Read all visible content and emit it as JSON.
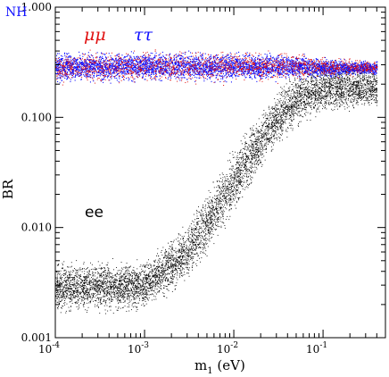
{
  "chart_data": {
    "type": "scatter",
    "corner_label": "NH",
    "corner_label_color": "#1010ff",
    "xlabel": "m",
    "xlabel_subscript": "1",
    "xlabel_unit": " (eV)",
    "ylabel": "BR",
    "x_scale": "log",
    "y_scale": "log",
    "xlim": [
      0.0001,
      0.5
    ],
    "ylim": [
      0.001,
      1.0
    ],
    "x_ticks": [
      {
        "value": 0.0001,
        "base": "10",
        "exp": "-4"
      },
      {
        "value": 0.001,
        "base": "10",
        "exp": "-3"
      },
      {
        "value": 0.01,
        "base": "10",
        "exp": "-2"
      },
      {
        "value": 0.1,
        "base": "10",
        "exp": "-1"
      }
    ],
    "y_ticks": [
      {
        "value": 0.001,
        "label": "0.001"
      },
      {
        "value": 0.01,
        "label": "0.010"
      },
      {
        "value": 0.1,
        "label": "0.100"
      },
      {
        "value": 1.0,
        "label": "1.000"
      }
    ],
    "series": [
      {
        "name": "μμ",
        "color": "#e01010",
        "band": [
          {
            "x": 0.0001,
            "low": 0.19,
            "high": 0.44
          },
          {
            "x": 0.01,
            "low": 0.19,
            "high": 0.44
          },
          {
            "x": 0.04,
            "low": 0.2,
            "high": 0.42
          },
          {
            "x": 0.1,
            "low": 0.22,
            "high": 0.37
          },
          {
            "x": 0.4,
            "low": 0.24,
            "high": 0.34
          }
        ]
      },
      {
        "name": "ττ",
        "color": "#1010ff",
        "band": [
          {
            "x": 0.0001,
            "low": 0.2,
            "high": 0.42
          },
          {
            "x": 0.01,
            "low": 0.2,
            "high": 0.42
          },
          {
            "x": 0.04,
            "low": 0.21,
            "high": 0.4
          },
          {
            "x": 0.1,
            "low": 0.22,
            "high": 0.36
          },
          {
            "x": 0.4,
            "low": 0.24,
            "high": 0.33
          }
        ]
      },
      {
        "name": "ee",
        "color": "#000000",
        "band": [
          {
            "x": 0.0001,
            "low": 0.0015,
            "high": 0.0055
          },
          {
            "x": 0.001,
            "low": 0.0016,
            "high": 0.0055
          },
          {
            "x": 0.003,
            "low": 0.003,
            "high": 0.012
          },
          {
            "x": 0.01,
            "low": 0.012,
            "high": 0.06
          },
          {
            "x": 0.03,
            "low": 0.05,
            "high": 0.2
          },
          {
            "x": 0.06,
            "low": 0.08,
            "high": 0.33
          },
          {
            "x": 0.1,
            "low": 0.1,
            "high": 0.33
          },
          {
            "x": 0.4,
            "low": 0.11,
            "high": 0.33
          }
        ]
      }
    ],
    "grid": false,
    "legend": "inline labels"
  }
}
